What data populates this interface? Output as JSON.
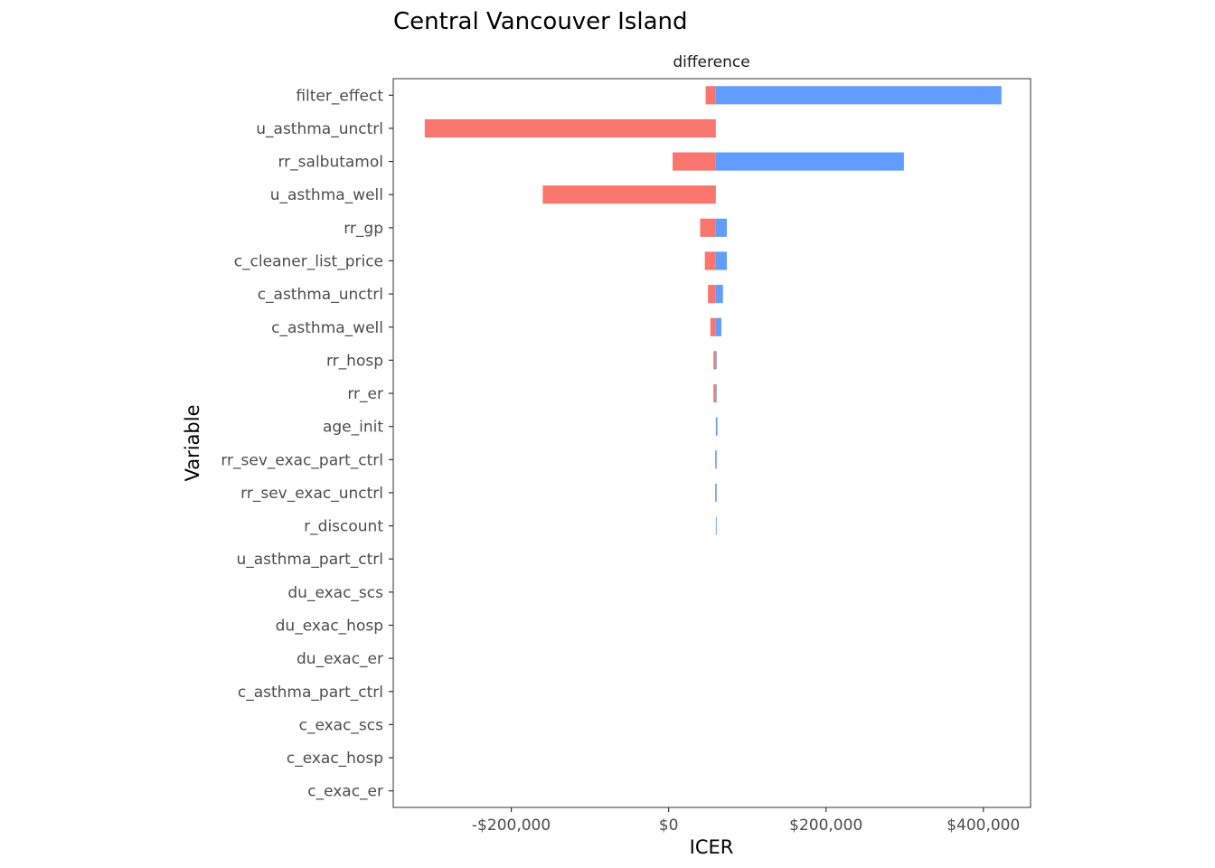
{
  "chart_data": {
    "type": "bar",
    "title": "Central Vancouver Island",
    "facet_label": "difference",
    "xlabel": "ICER",
    "ylabel": "Variable",
    "xlim": [
      -350000,
      460000
    ],
    "x_ticks": [
      {
        "value": -200000,
        "label": "-$200,000"
      },
      {
        "value": 0,
        "label": "$0"
      },
      {
        "value": 200000,
        "label": "$200,000"
      },
      {
        "value": 400000,
        "label": "$400,000"
      }
    ],
    "base_value": 60000,
    "grid": false,
    "colors": {
      "low": "#F8766D",
      "high": "#619CFF",
      "panel_border": "#333333",
      "axis_tick": "#333333"
    },
    "categories": [
      "filter_effect",
      "u_asthma_unctrl",
      "rr_salbutamol",
      "u_asthma_well",
      "rr_gp",
      "c_cleaner_list_price",
      "c_asthma_unctrl",
      "c_asthma_well",
      "rr_hosp",
      "rr_er",
      "age_init",
      "rr_sev_exac_part_ctrl",
      "rr_sev_exac_unctrl",
      "r_discount",
      "u_asthma_part_ctrl",
      "du_exac_scs",
      "du_exac_hosp",
      "du_exac_er",
      "c_asthma_part_ctrl",
      "c_exac_scs",
      "c_exac_hosp",
      "c_exac_er"
    ],
    "series": [
      {
        "key": "low",
        "values": [
          47000,
          -310000,
          5000,
          -160000,
          40000,
          46000,
          50000,
          53000,
          57000,
          57000,
          60000,
          59000,
          59000,
          60000,
          60000,
          60000,
          60000,
          60000,
          60000,
          60000,
          60000,
          60000
        ]
      },
      {
        "key": "high",
        "values": [
          423000,
          60000,
          299000,
          60000,
          74000,
          74000,
          69000,
          67000,
          61000,
          61000,
          62000,
          61000,
          61000,
          61000,
          60000,
          60000,
          60000,
          60000,
          60000,
          60000,
          60000,
          60000
        ]
      }
    ]
  }
}
